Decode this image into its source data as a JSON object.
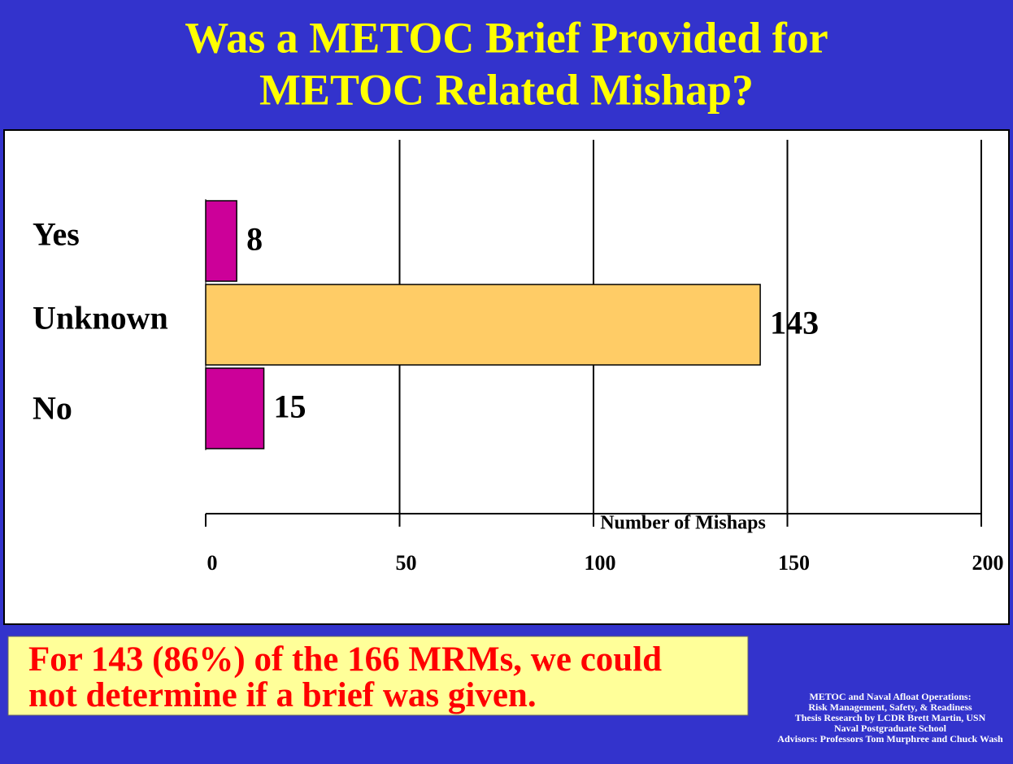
{
  "chart_data": {
    "type": "barh",
    "title": [
      "Was a METOC Brief Provided for",
      "METOC Related Mishap?"
    ],
    "categories": [
      "Yes",
      "Unknown",
      "No"
    ],
    "values": [
      8,
      143,
      15
    ],
    "colors": [
      "#cc0099",
      "#ffcc66",
      "#cc0099"
    ],
    "xlabel": "Number of Mishaps",
    "xlim": [
      0,
      200
    ],
    "xticks": [
      0,
      50,
      100,
      150,
      200
    ],
    "grid": true,
    "annotation": [
      "For 143 (86%) of the 166 MRMs, we could",
      "not determine if a brief was given."
    ],
    "footnote": [
      "METOC and Naval Afloat Operations:",
      "Risk Management, Safety, & Readiness",
      "Thesis Research by LCDR Brett Martin, USN",
      "Naval Postgraduate School",
      "Advisors: Professors Tom Murphree and Chuck Wash"
    ]
  }
}
